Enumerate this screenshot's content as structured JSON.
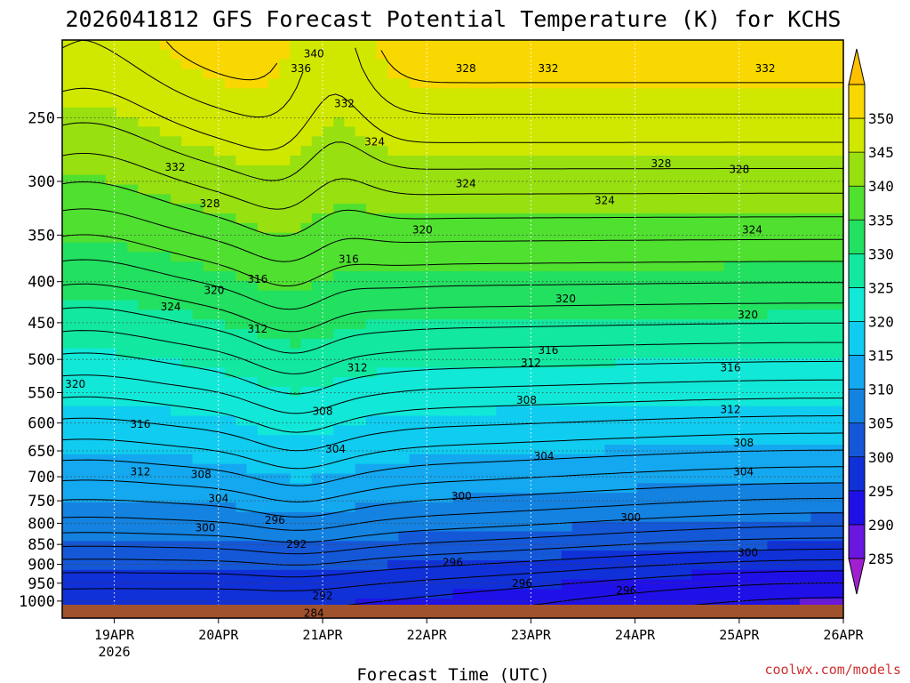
{
  "chart_data": {
    "type": "heatmap",
    "title": "2026041812 GFS Forecast Potential Temperature (K) for KCHS",
    "xlabel": "Forecast Time (UTC)",
    "ylabel": "",
    "credit": "coolwx.com/models",
    "x_ticks": [
      {
        "label": "19APR",
        "sub": "2026",
        "hours": 12
      },
      {
        "label": "20APR",
        "sub": "",
        "hours": 36
      },
      {
        "label": "21APR",
        "sub": "",
        "hours": 60
      },
      {
        "label": "22APR",
        "sub": "",
        "hours": 84
      },
      {
        "label": "23APR",
        "sub": "",
        "hours": 108
      },
      {
        "label": "24APR",
        "sub": "",
        "hours": 132
      },
      {
        "label": "25APR",
        "sub": "",
        "hours": 156
      },
      {
        "label": "26APR",
        "sub": "",
        "hours": 180
      }
    ],
    "xlim_hours": [
      0,
      180
    ],
    "y_ticks": [
      "250",
      "300",
      "350",
      "400",
      "450",
      "500",
      "550",
      "600",
      "650",
      "700",
      "750",
      "800",
      "850",
      "900",
      "950",
      "1000"
    ],
    "y_axis_unit": "hPa",
    "ylim": [
      1050,
      200
    ],
    "y_scale": "log-pressure",
    "colorbar": {
      "labels": [
        "285",
        "290",
        "295",
        "300",
        "305",
        "310",
        "315",
        "320",
        "325",
        "330",
        "335",
        "340",
        "345",
        "350"
      ],
      "range": [
        280,
        355
      ],
      "colors": [
        "#a020d0",
        "#6a18e0",
        "#2010e8",
        "#1030d8",
        "#1458d8",
        "#1482e0",
        "#14a8f0",
        "#10ccf0",
        "#12e8d8",
        "#12e8a0",
        "#22e060",
        "#50e030",
        "#98e010",
        "#d0e800",
        "#f8d800",
        "#ffc000"
      ],
      "extend": "both"
    },
    "contour_interval_K": 2,
    "contour_labels": [
      {
        "text": "340",
        "hours": 58,
        "p": 208
      },
      {
        "text": "336",
        "hours": 55,
        "p": 217
      },
      {
        "text": "332",
        "hours": 65,
        "p": 240
      },
      {
        "text": "328",
        "hours": 93,
        "p": 217
      },
      {
        "text": "332",
        "hours": 112,
        "p": 217
      },
      {
        "text": "332",
        "hours": 162,
        "p": 217
      },
      {
        "text": "332",
        "hours": 26,
        "p": 288
      },
      {
        "text": "324",
        "hours": 72,
        "p": 268
      },
      {
        "text": "328",
        "hours": 138,
        "p": 285
      },
      {
        "text": "328",
        "hours": 156,
        "p": 290
      },
      {
        "text": "324",
        "hours": 93,
        "p": 302
      },
      {
        "text": "328",
        "hours": 34,
        "p": 320
      },
      {
        "text": "324",
        "hours": 125,
        "p": 317
      },
      {
        "text": "320",
        "hours": 83,
        "p": 345
      },
      {
        "text": "324",
        "hours": 159,
        "p": 345
      },
      {
        "text": "316",
        "hours": 66,
        "p": 375
      },
      {
        "text": "316",
        "hours": 45,
        "p": 397
      },
      {
        "text": "320",
        "hours": 35,
        "p": 410
      },
      {
        "text": "324",
        "hours": 25,
        "p": 430
      },
      {
        "text": "320",
        "hours": 116,
        "p": 420
      },
      {
        "text": "320",
        "hours": 158,
        "p": 440
      },
      {
        "text": "312",
        "hours": 45,
        "p": 458
      },
      {
        "text": "316",
        "hours": 112,
        "p": 487
      },
      {
        "text": "312",
        "hours": 68,
        "p": 512
      },
      {
        "text": "312",
        "hours": 108,
        "p": 505
      },
      {
        "text": "316",
        "hours": 154,
        "p": 512
      },
      {
        "text": "320",
        "hours": 3,
        "p": 537
      },
      {
        "text": "308",
        "hours": 60,
        "p": 580
      },
      {
        "text": "308",
        "hours": 107,
        "p": 562
      },
      {
        "text": "312",
        "hours": 154,
        "p": 577
      },
      {
        "text": "316",
        "hours": 18,
        "p": 602
      },
      {
        "text": "304",
        "hours": 63,
        "p": 647
      },
      {
        "text": "308",
        "hours": 157,
        "p": 635
      },
      {
        "text": "304",
        "hours": 111,
        "p": 660
      },
      {
        "text": "312",
        "hours": 18,
        "p": 690
      },
      {
        "text": "308",
        "hours": 32,
        "p": 695
      },
      {
        "text": "304",
        "hours": 157,
        "p": 690
      },
      {
        "text": "304",
        "hours": 36,
        "p": 745
      },
      {
        "text": "300",
        "hours": 92,
        "p": 740
      },
      {
        "text": "296",
        "hours": 49,
        "p": 793
      },
      {
        "text": "300",
        "hours": 33,
        "p": 810
      },
      {
        "text": "300",
        "hours": 131,
        "p": 787
      },
      {
        "text": "292",
        "hours": 54,
        "p": 850
      },
      {
        "text": "300",
        "hours": 158,
        "p": 870
      },
      {
        "text": "296",
        "hours": 90,
        "p": 895
      },
      {
        "text": "296",
        "hours": 106,
        "p": 950
      },
      {
        "text": "296",
        "hours": 130,
        "p": 970
      },
      {
        "text": "292",
        "hours": 60,
        "p": 985
      },
      {
        "text": "284",
        "hours": 58,
        "p": 1035
      }
    ]
  }
}
